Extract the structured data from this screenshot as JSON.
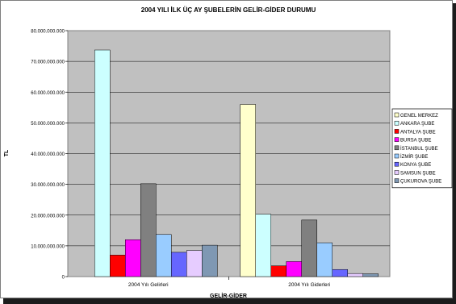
{
  "chart_data": {
    "type": "bar",
    "title": "2004 YILI İLK ÜÇ AY ŞUBELERİN GELİR-GİDER DURUMU",
    "xlabel": "GELİR-GİDER",
    "ylabel": "TL",
    "ylim": [
      0,
      80000000000
    ],
    "yticks": [
      "0",
      "10.000.000.000",
      "20.000.000.000",
      "30.000.000.000",
      "40.000.000.000",
      "50.000.000.000",
      "60.000.000.000",
      "70.000.000.000",
      "80.000.000.000"
    ],
    "categories": [
      "2004 Yılı Gelirleri",
      "2004 Yılı Giderleri"
    ],
    "legend_position": "right",
    "grid": "horizontal",
    "plot_background": "#c0c0c0",
    "series": [
      {
        "name": "GENEL MERKEZ",
        "color": "#ffffcc",
        "values": [
          0,
          56000000000
        ]
      },
      {
        "name": "ANKARA ŞUBE",
        "color": "#ccffff",
        "values": [
          73700000000,
          20300000000
        ]
      },
      {
        "name": "ANTALYA ŞUBE",
        "color": "#ff0000",
        "values": [
          7000000000,
          3500000000
        ]
      },
      {
        "name": "BURSA ŞUBE",
        "color": "#ff00ff",
        "values": [
          12000000000,
          4900000000
        ]
      },
      {
        "name": "İSTANBUL ŞUBE",
        "color": "#808080",
        "values": [
          30200000000,
          18400000000
        ]
      },
      {
        "name": "İZMİR ŞUBE",
        "color": "#99ccff",
        "values": [
          13700000000,
          11000000000
        ]
      },
      {
        "name": "KONYA ŞUBE",
        "color": "#6666ff",
        "values": [
          7900000000,
          2300000000
        ]
      },
      {
        "name": "SAMSUN ŞUBE",
        "color": "#e6ccff",
        "values": [
          8500000000,
          1000000000
        ]
      },
      {
        "name": "ÇUKUROVA ŞUBE",
        "color": "#7f98b3",
        "values": [
          10200000000,
          900000000
        ]
      }
    ]
  }
}
